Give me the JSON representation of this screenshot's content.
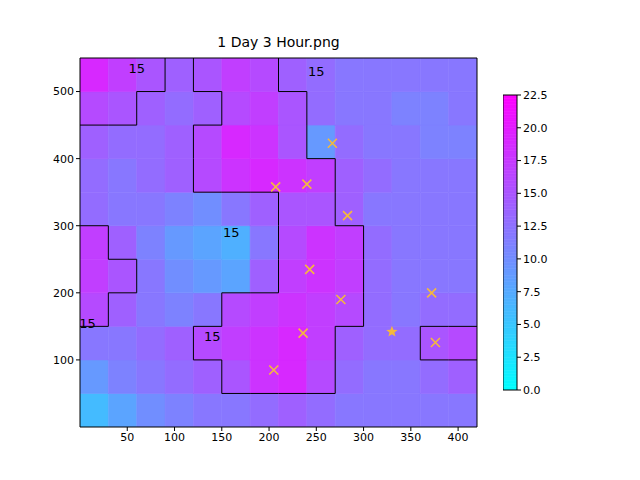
{
  "chart_data": {
    "type": "heatmap",
    "title": "1 Day 3 Hour.png",
    "xlim": [
      0,
      420
    ],
    "ylim": [
      0,
      550
    ],
    "xticks": [
      50,
      100,
      150,
      200,
      250,
      300,
      350,
      400
    ],
    "yticks": [
      100,
      200,
      300,
      400,
      500
    ],
    "x_edges": [
      0,
      30,
      60,
      90,
      120,
      150,
      180,
      210,
      240,
      270,
      300,
      330,
      360,
      390,
      420
    ],
    "y_edges": [
      0,
      50,
      100,
      150,
      200,
      250,
      300,
      350,
      400,
      450,
      500,
      550
    ],
    "cells": [
      [
        6,
        8,
        10,
        11,
        12,
        12,
        13,
        14,
        13,
        12,
        12,
        12,
        12,
        12
      ],
      [
        9,
        11,
        12,
        13,
        14,
        15,
        18,
        19,
        16,
        13,
        12,
        12,
        13,
        14
      ],
      [
        12,
        12,
        13,
        14,
        16,
        17,
        18,
        19,
        17,
        14,
        13,
        13,
        15,
        16
      ],
      [
        16,
        14,
        12,
        11,
        12,
        16,
        17,
        18,
        17,
        16,
        13,
        12,
        13,
        13
      ],
      [
        17,
        15,
        12,
        10,
        9,
        8,
        14,
        17,
        18,
        17,
        13,
        12,
        12,
        12
      ],
      [
        17,
        14,
        11,
        9,
        8,
        7,
        12,
        16,
        18,
        17,
        13,
        12,
        12,
        12
      ],
      [
        13,
        12,
        12,
        11,
        10,
        12,
        14,
        15,
        15,
        14,
        12,
        12,
        12,
        12
      ],
      [
        13,
        12,
        13,
        14,
        16,
        18,
        19,
        18,
        17,
        14,
        13,
        12,
        12,
        12
      ],
      [
        14,
        13,
        13,
        14,
        16,
        19,
        18,
        15,
        9,
        13,
        12,
        12,
        11,
        11
      ],
      [
        16,
        15,
        14,
        13,
        14,
        16,
        17,
        15,
        13,
        12,
        12,
        11,
        11,
        12
      ],
      [
        19,
        17,
        15,
        14,
        15,
        17,
        16,
        14,
        13,
        12,
        12,
        12,
        12,
        12
      ]
    ],
    "contour_level": 15,
    "contour_labels": [
      {
        "x": 8,
        "y": 155,
        "label": "15"
      },
      {
        "x": 140,
        "y": 135,
        "label": "15"
      },
      {
        "x": 60,
        "y": 535,
        "label": "15"
      },
      {
        "x": 160,
        "y": 290,
        "label": "15"
      },
      {
        "x": 250,
        "y": 530,
        "label": "15"
      }
    ],
    "colorbar": {
      "range": [
        0,
        22.5
      ],
      "ticks": [
        {
          "value": 0,
          "label": "0.0"
        },
        {
          "value": 2.5,
          "label": "2.5"
        },
        {
          "value": 5,
          "label": "5.0"
        },
        {
          "value": 7.5,
          "label": "7.5"
        },
        {
          "value": 10,
          "label": "10.0"
        },
        {
          "value": 12.5,
          "label": "12.5"
        },
        {
          "value": 15,
          "label": "15.0"
        },
        {
          "value": 17.5,
          "label": "17.5"
        },
        {
          "value": 20,
          "label": "20.0"
        },
        {
          "value": 22.5,
          "label": "22.5"
        }
      ]
    },
    "series": [
      {
        "type": "scatter",
        "marker": "x",
        "color": "#f5b83d",
        "x": [
          267,
          207,
          240,
          283,
          243,
          276,
          372,
          236,
          376,
          205
        ],
        "y": [
          423,
          358,
          362,
          315,
          235,
          190,
          200,
          140,
          126,
          85
        ]
      },
      {
        "type": "scatter",
        "marker": "star",
        "color": "#f5b83d",
        "x": [
          330
        ],
        "y": [
          142
        ]
      }
    ]
  }
}
